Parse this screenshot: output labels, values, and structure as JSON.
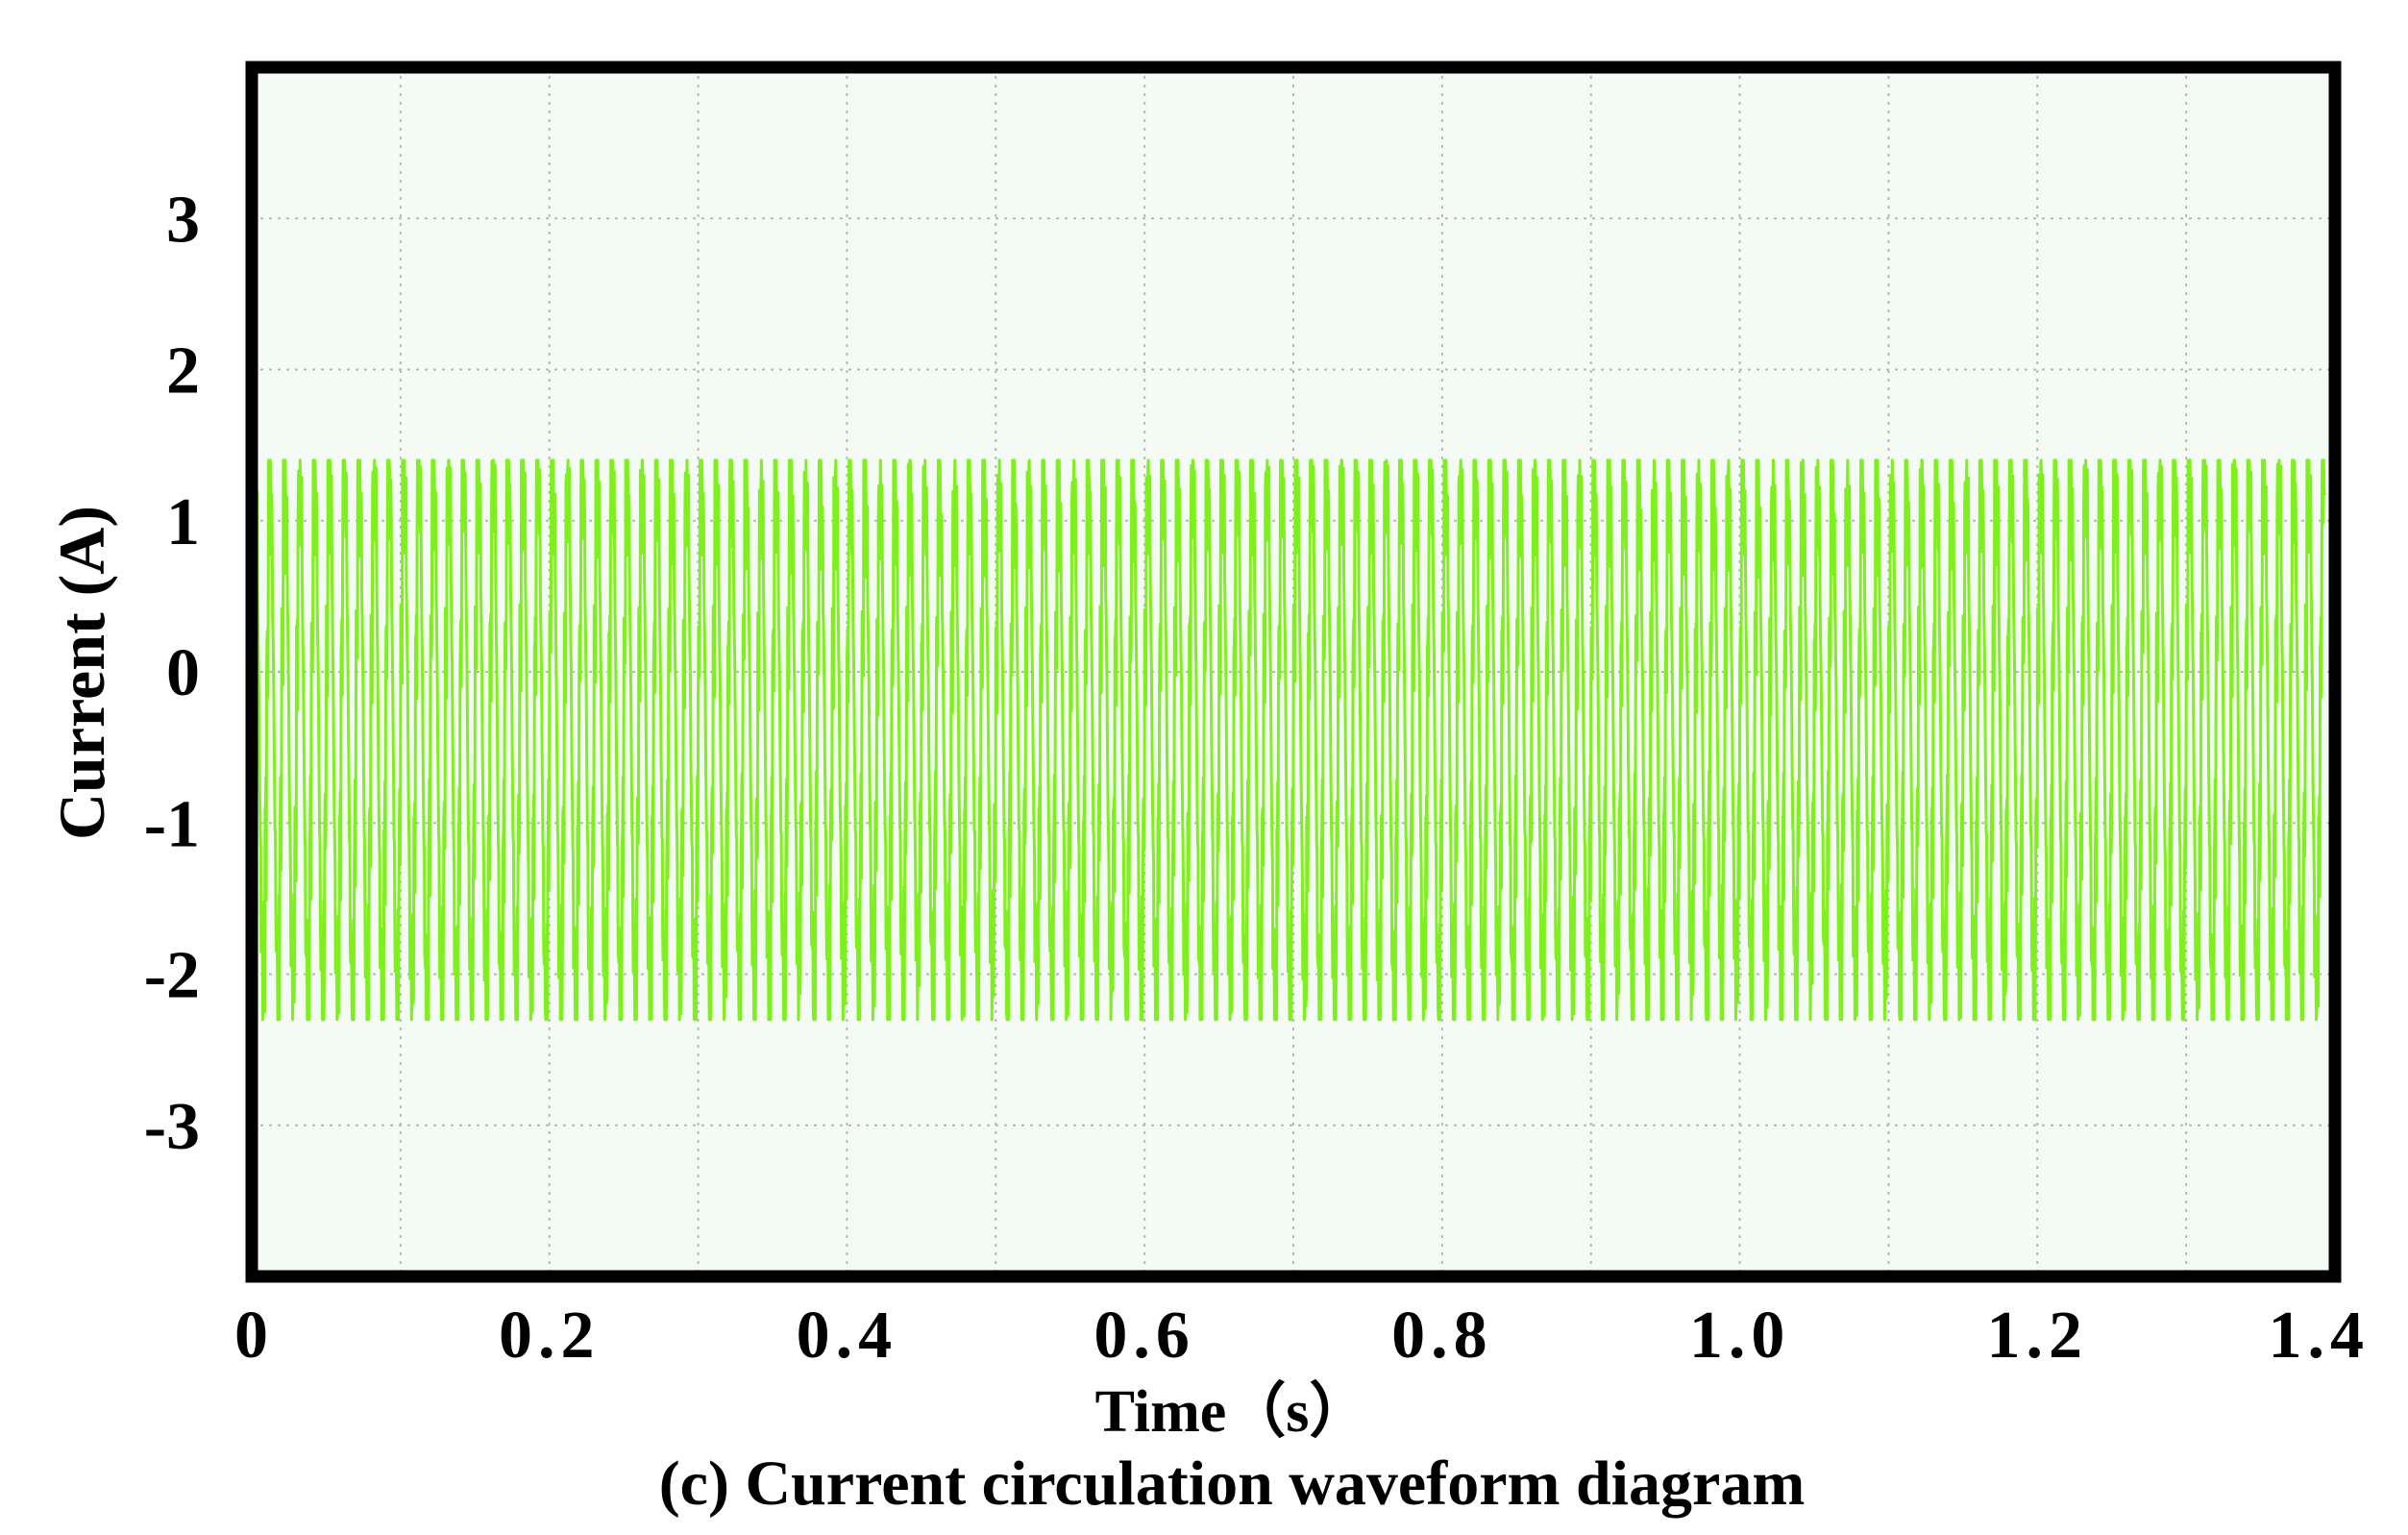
{
  "chart_data": {
    "type": "line",
    "xlabel": "Time（s）",
    "ylabel": "Current (A)",
    "caption": "(c) Current circulation waveform diagram",
    "xlim": [
      0,
      1.4
    ],
    "ylim": [
      -4,
      4
    ],
    "x_ticks": [
      "0",
      "0.2",
      "0.4",
      "0.6",
      "0.8",
      "1.0",
      "1.2",
      "1.4"
    ],
    "x_tick_values": [
      0,
      0.2,
      0.4,
      0.6,
      0.8,
      1.0,
      1.2,
      1.4
    ],
    "y_ticks": [
      "3",
      "2",
      "1",
      "0",
      "-1",
      "-2",
      "-3"
    ],
    "y_tick_values": [
      3,
      2,
      1,
      0,
      -1,
      -2,
      -3
    ],
    "grid": true,
    "series": [
      {
        "color": "#7ef01c",
        "waveform": {
          "description_values": {
            "period_s": 0.01,
            "peak_max_A": 1.4,
            "peak_min_A": -2.3,
            "typical_high_A": 1.3,
            "typical_low_A": -2.1
          }
        }
      }
    ]
  },
  "colors": {
    "plot_background": "#f4faf4",
    "frame": "#000000",
    "grid": "#b8b8b8",
    "trace": "#7ef01c"
  }
}
